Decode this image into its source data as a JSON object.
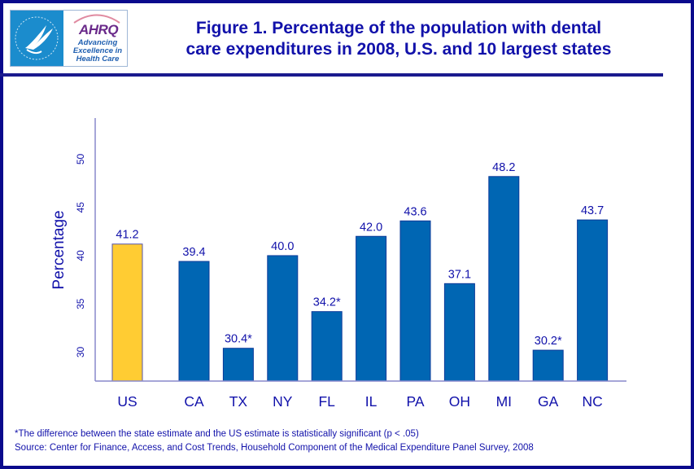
{
  "logo": {
    "org": "AHRQ",
    "tagline": "Advancing Excellence in Health Care"
  },
  "title_lines": [
    "Figure 1.  Percentage of the population with dental",
    "care expenditures in 2008, U.S. and 10 largest states"
  ],
  "footnotes": {
    "significance": "*The difference between the state estimate and the US estimate is statistically significant (p < .05)",
    "source": "Source: Center for Finance, Access, and Cost Trends, Household Component of the Medical Expenditure Panel Survey, 2008"
  },
  "chart_data": {
    "type": "bar",
    "title": "Figure 1.  Percentage of the population with dental care expenditures in 2008, U.S. and 10 largest states",
    "ylabel": "Percentage",
    "xlabel": "",
    "ylim": [
      27,
      54
    ],
    "yticks": [
      30,
      35,
      40,
      45,
      50
    ],
    "grid": false,
    "categories": [
      "US",
      "CA",
      "TX",
      "NY",
      "FL",
      "IL",
      "PA",
      "OH",
      "MI",
      "GA",
      "NC"
    ],
    "values": [
      41.2,
      39.4,
      30.4,
      40.0,
      34.2,
      42.0,
      43.6,
      37.1,
      48.2,
      30.2,
      43.7
    ],
    "data_labels": [
      "41.2",
      "39.4",
      "30.4*",
      "40.0",
      "34.2*",
      "42.0",
      "43.6",
      "37.1",
      "48.2",
      "30.2*",
      "43.7"
    ],
    "colors": {
      "US": "#ffcc33",
      "states": "#0066b3",
      "text": "#1111aa"
    }
  }
}
